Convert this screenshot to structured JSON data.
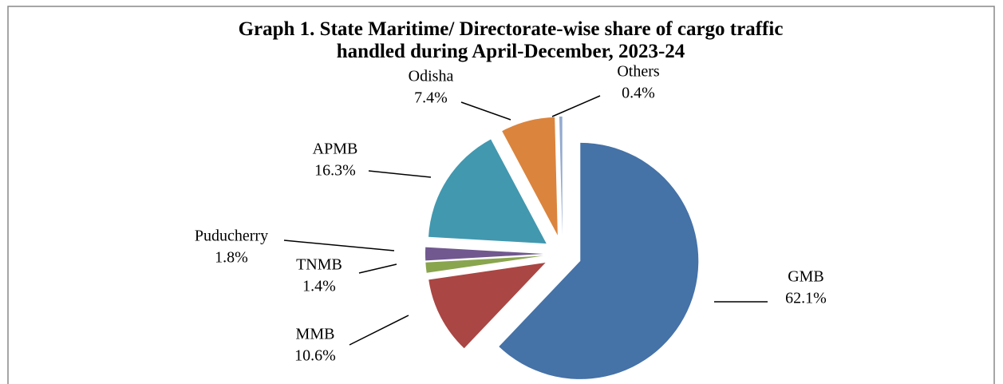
{
  "chart_data": {
    "type": "pie",
    "title": "Graph 1. State Maritime/ Directorate-wise share of cargo traffic handled during April-December, 2023-24",
    "categories": [
      "GMB",
      "MMB",
      "TNMB",
      "Puducherry",
      "APMB",
      "Odisha",
      "Others"
    ],
    "values": [
      62.1,
      10.6,
      1.4,
      1.8,
      16.3,
      7.4,
      0.4
    ],
    "value_labels": [
      "62.1%",
      "10.6%",
      "1.4%",
      "1.8%",
      "16.3%",
      "7.4%",
      "0.4%"
    ],
    "colors": [
      "#4572a7",
      "#aa4643",
      "#89a54e",
      "#71588f",
      "#4198af",
      "#db843d",
      "#93a9cf"
    ]
  }
}
